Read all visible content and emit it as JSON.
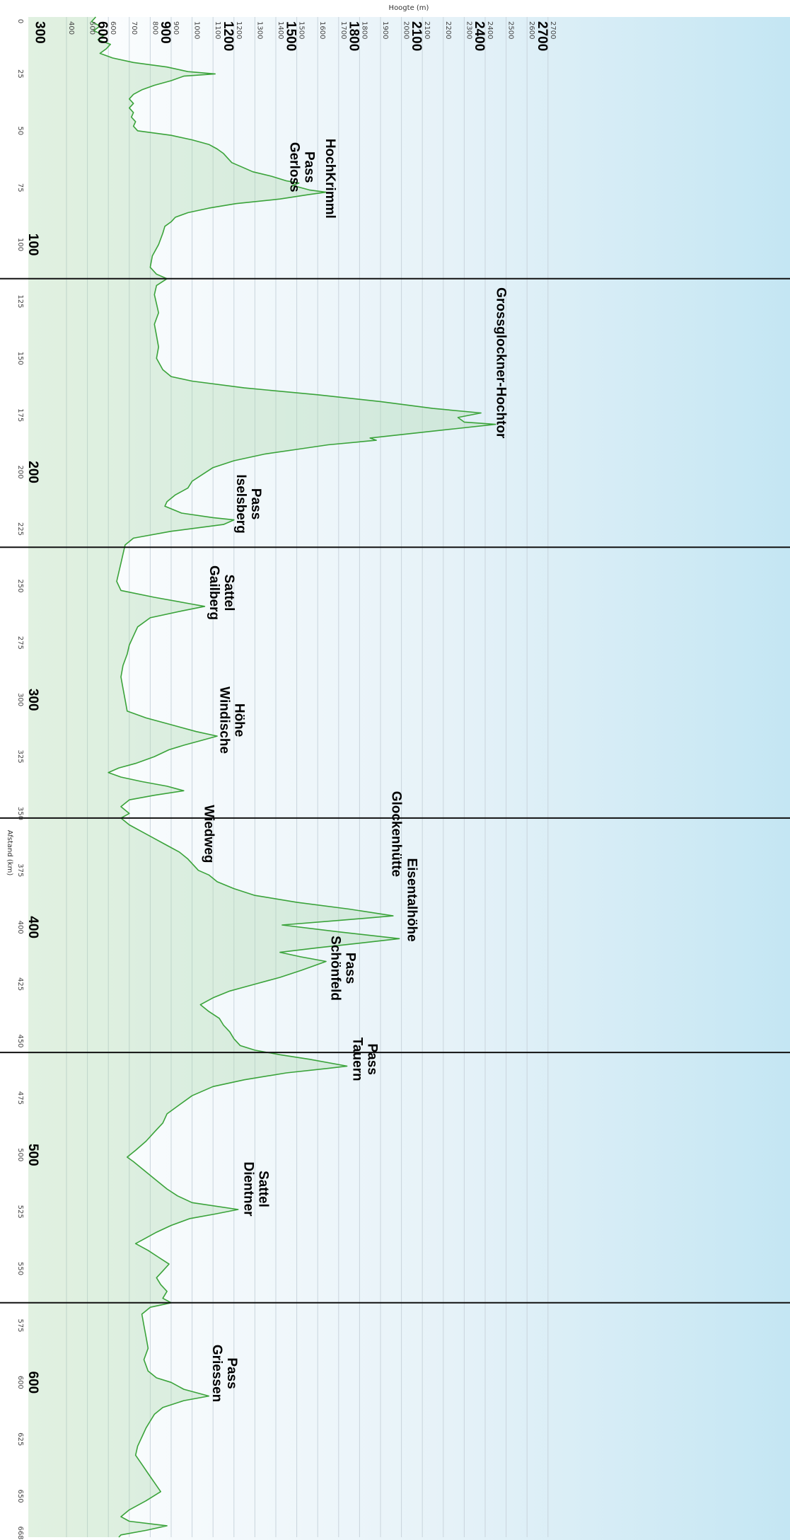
{
  "chart_data": {
    "type": "area",
    "xlabel": "Afstand (km)",
    "ylabel": "Hoogte (m)",
    "x_range": [
      0,
      668
    ],
    "y_range": [
      400,
      2800
    ],
    "orientation": "rotated-90-clockwise",
    "grid": true,
    "small_x_ticks": [
      0,
      25,
      50,
      75,
      100,
      125,
      150,
      175,
      200,
      225,
      250,
      275,
      300,
      325,
      350,
      375,
      400,
      425,
      450,
      475,
      500,
      525,
      550,
      575,
      600,
      625,
      650,
      668
    ],
    "small_y_ticks": [
      400,
      500,
      600,
      700,
      800,
      900,
      1000,
      1100,
      1200,
      1300,
      1400,
      1500,
      1600,
      1700,
      1800,
      1900,
      2000,
      2100,
      2200,
      2300,
      2400,
      2500,
      2600,
      2700
    ],
    "big_y_labels": [
      300,
      600,
      900,
      1200,
      1500,
      1800,
      2100,
      2400,
      2700
    ],
    "big_x_labels": [
      100,
      200,
      300,
      400,
      500,
      600
    ],
    "stage_dividers_km": [
      115,
      233,
      352,
      455,
      565
    ],
    "colors": {
      "line": "#3aa33a",
      "fill": "#a8d8a8",
      "divider": "#111111",
      "grid": "#c9d4dc"
    },
    "points": [
      {
        "x": 0,
        "y": 540
      },
      {
        "x": 2,
        "y": 520
      },
      {
        "x": 4,
        "y": 560
      },
      {
        "x": 6,
        "y": 530
      },
      {
        "x": 8,
        "y": 580
      },
      {
        "x": 10,
        "y": 550
      },
      {
        "x": 12,
        "y": 610
      },
      {
        "x": 14,
        "y": 590
      },
      {
        "x": 16,
        "y": 560
      },
      {
        "x": 18,
        "y": 620
      },
      {
        "x": 20,
        "y": 720
      },
      {
        "x": 22,
        "y": 880
      },
      {
        "x": 24,
        "y": 980
      },
      {
        "x": 25,
        "y": 1110
      },
      {
        "x": 26,
        "y": 960
      },
      {
        "x": 28,
        "y": 900
      },
      {
        "x": 30,
        "y": 820
      },
      {
        "x": 32,
        "y": 760
      },
      {
        "x": 34,
        "y": 720
      },
      {
        "x": 36,
        "y": 700
      },
      {
        "x": 38,
        "y": 720
      },
      {
        "x": 40,
        "y": 700
      },
      {
        "x": 42,
        "y": 720
      },
      {
        "x": 44,
        "y": 710
      },
      {
        "x": 46,
        "y": 730
      },
      {
        "x": 48,
        "y": 720
      },
      {
        "x": 50,
        "y": 740
      },
      {
        "x": 52,
        "y": 900
      },
      {
        "x": 54,
        "y": 1000
      },
      {
        "x": 56,
        "y": 1080
      },
      {
        "x": 58,
        "y": 1120
      },
      {
        "x": 60,
        "y": 1150
      },
      {
        "x": 62,
        "y": 1170
      },
      {
        "x": 64,
        "y": 1190
      },
      {
        "x": 66,
        "y": 1240
      },
      {
        "x": 68,
        "y": 1290
      },
      {
        "x": 70,
        "y": 1380
      },
      {
        "x": 72,
        "y": 1450
      },
      {
        "x": 73,
        "y": 1510
      },
      {
        "x": 74,
        "y": 1480
      },
      {
        "x": 76,
        "y": 1560
      },
      {
        "x": 77,
        "y": 1640
      },
      {
        "x": 78,
        "y": 1560
      },
      {
        "x": 80,
        "y": 1420
      },
      {
        "x": 82,
        "y": 1210
      },
      {
        "x": 84,
        "y": 1080
      },
      {
        "x": 86,
        "y": 980
      },
      {
        "x": 88,
        "y": 920
      },
      {
        "x": 90,
        "y": 900
      },
      {
        "x": 92,
        "y": 870
      },
      {
        "x": 95,
        "y": 860
      },
      {
        "x": 100,
        "y": 840
      },
      {
        "x": 105,
        "y": 810
      },
      {
        "x": 110,
        "y": 800
      },
      {
        "x": 113,
        "y": 830
      },
      {
        "x": 115,
        "y": 880
      },
      {
        "x": 118,
        "y": 830
      },
      {
        "x": 122,
        "y": 820
      },
      {
        "x": 126,
        "y": 830
      },
      {
        "x": 130,
        "y": 840
      },
      {
        "x": 135,
        "y": 820
      },
      {
        "x": 140,
        "y": 830
      },
      {
        "x": 145,
        "y": 840
      },
      {
        "x": 150,
        "y": 830
      },
      {
        "x": 155,
        "y": 860
      },
      {
        "x": 158,
        "y": 900
      },
      {
        "x": 160,
        "y": 1000
      },
      {
        "x": 163,
        "y": 1250
      },
      {
        "x": 166,
        "y": 1600
      },
      {
        "x": 169,
        "y": 1900
      },
      {
        "x": 172,
        "y": 2150
      },
      {
        "x": 174,
        "y": 2380
      },
      {
        "x": 176,
        "y": 2270
      },
      {
        "x": 178,
        "y": 2300
      },
      {
        "x": 179,
        "y": 2450
      },
      {
        "x": 181,
        "y": 2250
      },
      {
        "x": 183,
        "y": 2050
      },
      {
        "x": 185,
        "y": 1850
      },
      {
        "x": 186,
        "y": 1880
      },
      {
        "x": 188,
        "y": 1650
      },
      {
        "x": 190,
        "y": 1500
      },
      {
        "x": 192,
        "y": 1350
      },
      {
        "x": 195,
        "y": 1200
      },
      {
        "x": 198,
        "y": 1100
      },
      {
        "x": 201,
        "y": 1050
      },
      {
        "x": 204,
        "y": 1000
      },
      {
        "x": 207,
        "y": 980
      },
      {
        "x": 210,
        "y": 920
      },
      {
        "x": 213,
        "y": 880
      },
      {
        "x": 215,
        "y": 870
      },
      {
        "x": 218,
        "y": 950
      },
      {
        "x": 220,
        "y": 1100
      },
      {
        "x": 221,
        "y": 1200
      },
      {
        "x": 223,
        "y": 1150
      },
      {
        "x": 226,
        "y": 900
      },
      {
        "x": 229,
        "y": 720
      },
      {
        "x": 232,
        "y": 680
      },
      {
        "x": 236,
        "y": 670
      },
      {
        "x": 240,
        "y": 660
      },
      {
        "x": 244,
        "y": 650
      },
      {
        "x": 248,
        "y": 640
      },
      {
        "x": 252,
        "y": 660
      },
      {
        "x": 255,
        "y": 820
      },
      {
        "x": 258,
        "y": 1000
      },
      {
        "x": 259,
        "y": 1060
      },
      {
        "x": 261,
        "y": 950
      },
      {
        "x": 264,
        "y": 800
      },
      {
        "x": 268,
        "y": 740
      },
      {
        "x": 272,
        "y": 720
      },
      {
        "x": 276,
        "y": 700
      },
      {
        "x": 280,
        "y": 690
      },
      {
        "x": 285,
        "y": 670
      },
      {
        "x": 290,
        "y": 660
      },
      {
        "x": 295,
        "y": 670
      },
      {
        "x": 300,
        "y": 680
      },
      {
        "x": 305,
        "y": 690
      },
      {
        "x": 308,
        "y": 780
      },
      {
        "x": 311,
        "y": 900
      },
      {
        "x": 314,
        "y": 1020
      },
      {
        "x": 316,
        "y": 1120
      },
      {
        "x": 318,
        "y": 1040
      },
      {
        "x": 320,
        "y": 960
      },
      {
        "x": 322,
        "y": 890
      },
      {
        "x": 325,
        "y": 820
      },
      {
        "x": 328,
        "y": 730
      },
      {
        "x": 330,
        "y": 650
      },
      {
        "x": 332,
        "y": 600
      },
      {
        "x": 334,
        "y": 660
      },
      {
        "x": 336,
        "y": 760
      },
      {
        "x": 338,
        "y": 880
      },
      {
        "x": 340,
        "y": 960
      },
      {
        "x": 342,
        "y": 820
      },
      {
        "x": 344,
        "y": 700
      },
      {
        "x": 347,
        "y": 660
      },
      {
        "x": 350,
        "y": 700
      },
      {
        "x": 352,
        "y": 660
      },
      {
        "x": 355,
        "y": 700
      },
      {
        "x": 358,
        "y": 760
      },
      {
        "x": 361,
        "y": 820
      },
      {
        "x": 364,
        "y": 880
      },
      {
        "x": 367,
        "y": 940
      },
      {
        "x": 370,
        "y": 980
      },
      {
        "x": 373,
        "y": 1010
      },
      {
        "x": 375,
        "y": 1030
      },
      {
        "x": 377,
        "y": 1080
      },
      {
        "x": 380,
        "y": 1120
      },
      {
        "x": 383,
        "y": 1200
      },
      {
        "x": 386,
        "y": 1300
      },
      {
        "x": 389,
        "y": 1500
      },
      {
        "x": 392,
        "y": 1750
      },
      {
        "x": 395,
        "y": 1960
      },
      {
        "x": 397,
        "y": 1700
      },
      {
        "x": 399,
        "y": 1430
      },
      {
        "x": 402,
        "y": 1700
      },
      {
        "x": 405,
        "y": 1990
      },
      {
        "x": 407,
        "y": 1800
      },
      {
        "x": 409,
        "y": 1600
      },
      {
        "x": 411,
        "y": 1420
      },
      {
        "x": 413,
        "y": 1520
      },
      {
        "x": 415,
        "y": 1640
      },
      {
        "x": 417,
        "y": 1580
      },
      {
        "x": 419,
        "y": 1520
      },
      {
        "x": 422,
        "y": 1420
      },
      {
        "x": 425,
        "y": 1300
      },
      {
        "x": 428,
        "y": 1180
      },
      {
        "x": 431,
        "y": 1100
      },
      {
        "x": 434,
        "y": 1040
      },
      {
        "x": 437,
        "y": 1080
      },
      {
        "x": 440,
        "y": 1130
      },
      {
        "x": 443,
        "y": 1150
      },
      {
        "x": 446,
        "y": 1180
      },
      {
        "x": 449,
        "y": 1200
      },
      {
        "x": 452,
        "y": 1230
      },
      {
        "x": 454,
        "y": 1300
      },
      {
        "x": 456,
        "y": 1420
      },
      {
        "x": 458,
        "y": 1560
      },
      {
        "x": 461,
        "y": 1740
      },
      {
        "x": 462,
        "y": 1650
      },
      {
        "x": 464,
        "y": 1450
      },
      {
        "x": 467,
        "y": 1250
      },
      {
        "x": 470,
        "y": 1100
      },
      {
        "x": 474,
        "y": 1000
      },
      {
        "x": 478,
        "y": 940
      },
      {
        "x": 482,
        "y": 880
      },
      {
        "x": 486,
        "y": 860
      },
      {
        "x": 490,
        "y": 820
      },
      {
        "x": 494,
        "y": 780
      },
      {
        "x": 498,
        "y": 730
      },
      {
        "x": 501,
        "y": 690
      },
      {
        "x": 503,
        "y": 720
      },
      {
        "x": 506,
        "y": 760
      },
      {
        "x": 509,
        "y": 800
      },
      {
        "x": 512,
        "y": 840
      },
      {
        "x": 515,
        "y": 880
      },
      {
        "x": 518,
        "y": 930
      },
      {
        "x": 521,
        "y": 1000
      },
      {
        "x": 524,
        "y": 1220
      },
      {
        "x": 526,
        "y": 1110
      },
      {
        "x": 528,
        "y": 990
      },
      {
        "x": 531,
        "y": 900
      },
      {
        "x": 534,
        "y": 830
      },
      {
        "x": 537,
        "y": 770
      },
      {
        "x": 539,
        "y": 730
      },
      {
        "x": 542,
        "y": 790
      },
      {
        "x": 545,
        "y": 840
      },
      {
        "x": 548,
        "y": 890
      },
      {
        "x": 551,
        "y": 860
      },
      {
        "x": 554,
        "y": 830
      },
      {
        "x": 557,
        "y": 850
      },
      {
        "x": 560,
        "y": 880
      },
      {
        "x": 563,
        "y": 860
      },
      {
        "x": 565,
        "y": 900
      },
      {
        "x": 567,
        "y": 800
      },
      {
        "x": 570,
        "y": 760
      },
      {
        "x": 575,
        "y": 770
      },
      {
        "x": 580,
        "y": 780
      },
      {
        "x": 585,
        "y": 790
      },
      {
        "x": 590,
        "y": 770
      },
      {
        "x": 595,
        "y": 790
      },
      {
        "x": 598,
        "y": 830
      },
      {
        "x": 600,
        "y": 900
      },
      {
        "x": 603,
        "y": 960
      },
      {
        "x": 606,
        "y": 1080
      },
      {
        "x": 608,
        "y": 960
      },
      {
        "x": 611,
        "y": 860
      },
      {
        "x": 614,
        "y": 820
      },
      {
        "x": 617,
        "y": 800
      },
      {
        "x": 620,
        "y": 780
      },
      {
        "x": 624,
        "y": 760
      },
      {
        "x": 628,
        "y": 740
      },
      {
        "x": 632,
        "y": 730
      },
      {
        "x": 636,
        "y": 760
      },
      {
        "x": 640,
        "y": 790
      },
      {
        "x": 644,
        "y": 820
      },
      {
        "x": 648,
        "y": 850
      },
      {
        "x": 652,
        "y": 780
      },
      {
        "x": 656,
        "y": 700
      },
      {
        "x": 659,
        "y": 660
      },
      {
        "x": 661,
        "y": 700
      },
      {
        "x": 663,
        "y": 880
      },
      {
        "x": 665,
        "y": 780
      },
      {
        "x": 667,
        "y": 660
      },
      {
        "x": 668,
        "y": 650
      }
    ],
    "annotations": [
      {
        "lines": [
          "Gerloss",
          "Pass"
        ],
        "x": 66,
        "y": 1470
      },
      {
        "lines": [
          "HochKrimml"
        ],
        "x": 71,
        "y": 1640
      },
      {
        "lines": [
          "Grossglockner-Hochtor"
        ],
        "x": 152,
        "y": 2455
      },
      {
        "lines": [
          "Iselsberg",
          "Pass"
        ],
        "x": 214,
        "y": 1215
      },
      {
        "lines": [
          "Gailberg",
          "Sattel"
        ],
        "x": 253,
        "y": 1085
      },
      {
        "lines": [
          "Windische",
          "Höhe"
        ],
        "x": 309,
        "y": 1135
      },
      {
        "lines": [
          "Wiedweg"
        ],
        "x": 359,
        "y": 1060
      },
      {
        "lines": [
          "Glockenhütte"
        ],
        "x": 359,
        "y": 1955
      },
      {
        "lines": [
          "Eisentalhöhe"
        ],
        "x": 388,
        "y": 2030
      },
      {
        "lines": [
          "Schönfeld",
          "Pass"
        ],
        "x": 418,
        "y": 1665
      },
      {
        "lines": [
          "Tauern",
          "Pass"
        ],
        "x": 458,
        "y": 1770
      },
      {
        "lines": [
          "Dientner",
          "Sattel"
        ],
        "x": 515,
        "y": 1250
      },
      {
        "lines": [
          "Griessen",
          "Pass"
        ],
        "x": 596,
        "y": 1100
      }
    ]
  }
}
